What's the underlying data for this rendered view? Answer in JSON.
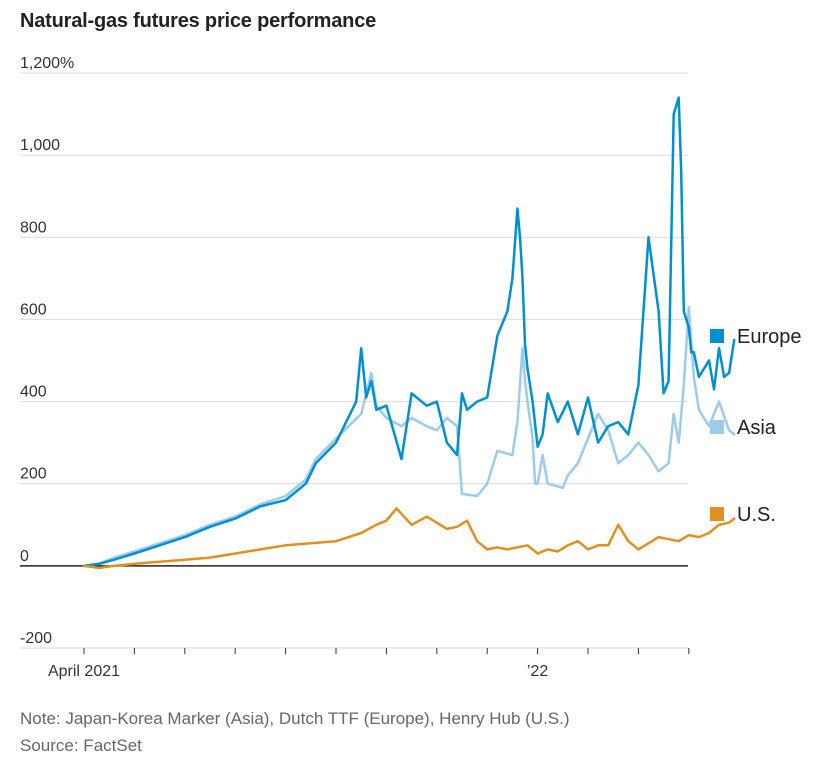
{
  "title": "Natural-gas futures price performance",
  "note": "Note: Japan-Korea Marker (Asia), Dutch TTF (Europe), Henry Hub (U.S.)",
  "source": "Source: FactSet",
  "chart_data": {
    "type": "line",
    "ylim": [
      -200,
      1200
    ],
    "xlim": [
      0,
      13.3
    ],
    "yticks": [
      {
        "value": 1200,
        "label": "1,200%"
      },
      {
        "value": 1000,
        "label": "1,000"
      },
      {
        "value": 800,
        "label": "800"
      },
      {
        "value": 600,
        "label": "600"
      },
      {
        "value": 400,
        "label": "400"
      },
      {
        "value": 200,
        "label": "200"
      },
      {
        "value": 0,
        "label": "0"
      },
      {
        "value": -200,
        "label": "-200"
      }
    ],
    "xticks": [
      {
        "value": 0,
        "label": "April 2021"
      },
      {
        "value": 1,
        "label": ""
      },
      {
        "value": 2,
        "label": ""
      },
      {
        "value": 3,
        "label": ""
      },
      {
        "value": 4,
        "label": ""
      },
      {
        "value": 5,
        "label": ""
      },
      {
        "value": 6,
        "label": ""
      },
      {
        "value": 7,
        "label": ""
      },
      {
        "value": 8,
        "label": ""
      },
      {
        "value": 9,
        "label": "’22"
      },
      {
        "value": 10,
        "label": ""
      },
      {
        "value": 11,
        "label": ""
      },
      {
        "value": 12,
        "label": ""
      }
    ],
    "grid": true,
    "legend": "right",
    "series": [
      {
        "name": "Asia",
        "color": "#9ccbec",
        "x": [
          0,
          0.3,
          0.6,
          1.0,
          1.5,
          2.0,
          2.5,
          3.0,
          3.5,
          4.0,
          4.4,
          4.6,
          5.0,
          5.5,
          5.6,
          5.7,
          5.8,
          6.0,
          6.3,
          6.5,
          6.8,
          7.0,
          7.2,
          7.4,
          7.5,
          7.52,
          7.8,
          8.0,
          8.2,
          8.5,
          8.6,
          8.7,
          8.75,
          8.8,
          8.9,
          8.95,
          9.0,
          9.1,
          9.2,
          9.5,
          9.6,
          9.8,
          10.0,
          10.2,
          10.4,
          10.6,
          10.8,
          11.0,
          11.2,
          11.4,
          11.5,
          11.6,
          11.7,
          11.8,
          11.9,
          12.0,
          12.1,
          12.2,
          12.4,
          12.6,
          12.8,
          12.9
        ],
        "values": [
          0,
          5,
          20,
          35,
          55,
          75,
          100,
          120,
          150,
          170,
          210,
          260,
          310,
          370,
          420,
          470,
          390,
          360,
          340,
          360,
          340,
          330,
          360,
          340,
          175,
          175,
          170,
          200,
          280,
          270,
          350,
          530,
          450,
          400,
          310,
          200,
          200,
          270,
          200,
          190,
          220,
          250,
          310,
          370,
          330,
          250,
          270,
          300,
          270,
          230,
          240,
          250,
          370,
          300,
          440,
          630,
          460,
          380,
          340,
          400,
          330,
          320
        ]
      },
      {
        "name": "Europe",
        "color": "#0090d0",
        "x": [
          0,
          0.3,
          0.6,
          1.0,
          1.5,
          2.0,
          2.5,
          3.0,
          3.5,
          4.0,
          4.4,
          4.6,
          5.0,
          5.4,
          5.5,
          5.6,
          5.7,
          5.8,
          6.0,
          6.3,
          6.5,
          6.8,
          7.0,
          7.2,
          7.4,
          7.5,
          7.6,
          7.8,
          8.0,
          8.2,
          8.4,
          8.5,
          8.6,
          8.65,
          8.7,
          8.75,
          8.8,
          8.9,
          9.0,
          9.1,
          9.2,
          9.4,
          9.6,
          9.8,
          10.0,
          10.2,
          10.4,
          10.6,
          10.8,
          11.0,
          11.2,
          11.4,
          11.5,
          11.6,
          11.7,
          11.8,
          11.85,
          11.9,
          12.0,
          12.05,
          12.1,
          12.2,
          12.4,
          12.5,
          12.6,
          12.7,
          12.8,
          12.9
        ],
        "values": [
          0,
          5,
          15,
          30,
          50,
          70,
          95,
          115,
          145,
          160,
          200,
          250,
          300,
          400,
          530,
          410,
          450,
          380,
          390,
          260,
          420,
          390,
          400,
          300,
          270,
          420,
          380,
          400,
          410,
          560,
          620,
          700,
          870,
          800,
          700,
          540,
          480,
          400,
          290,
          320,
          420,
          350,
          400,
          320,
          410,
          300,
          340,
          350,
          320,
          440,
          800,
          620,
          420,
          450,
          1100,
          1140,
          960,
          620,
          580,
          520,
          520,
          460,
          500,
          430,
          530,
          460,
          470,
          550
        ]
      },
      {
        "name": "U.S.",
        "color": "#e09020",
        "x": [
          0,
          0.3,
          0.6,
          1.0,
          1.5,
          2.0,
          2.5,
          3.0,
          3.5,
          4.0,
          4.5,
          5.0,
          5.5,
          5.8,
          6.0,
          6.2,
          6.5,
          6.8,
          7.0,
          7.2,
          7.4,
          7.6,
          7.8,
          8.0,
          8.2,
          8.4,
          8.6,
          8.8,
          9.0,
          9.2,
          9.4,
          9.6,
          9.8,
          10.0,
          10.2,
          10.4,
          10.6,
          10.8,
          11.0,
          11.2,
          11.4,
          11.6,
          11.8,
          12.0,
          12.2,
          12.4,
          12.6,
          12.8,
          12.9
        ],
        "values": [
          0,
          -5,
          0,
          5,
          10,
          15,
          20,
          30,
          40,
          50,
          55,
          60,
          80,
          100,
          110,
          140,
          100,
          120,
          105,
          90,
          95,
          110,
          60,
          40,
          45,
          40,
          45,
          50,
          30,
          40,
          35,
          50,
          60,
          40,
          50,
          50,
          100,
          60,
          40,
          55,
          70,
          65,
          60,
          75,
          70,
          80,
          100,
          105,
          115
        ]
      }
    ]
  }
}
